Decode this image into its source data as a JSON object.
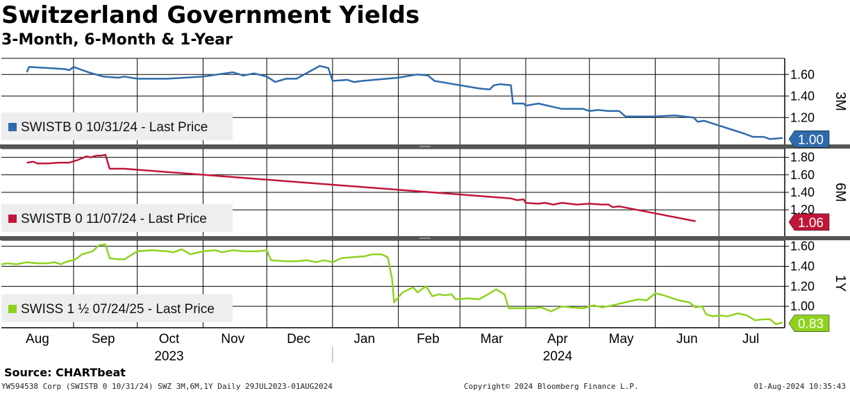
{
  "header": {
    "title": "Switzerland Government Yields",
    "subtitle": "3-Month, 6-Month & 1-Year"
  },
  "source": "Source: CHARTbeat",
  "footer": {
    "left": "YW594538 Corp (SWISTB 0 10/31/24) SWZ 3M,6M,1Y  Daily 29JUL2023-01AUG2024",
    "center": "Copyright© 2024 Bloomberg Finance L.P.",
    "right": "01-Aug-2024 10:35:43"
  },
  "colors": {
    "series_3m": "#2e6bab",
    "series_6m": "#c0163a",
    "series_1y": "#8fd21e",
    "grid": "#000000",
    "legend_bg": "#eeeeee",
    "panel_divider": "#555555"
  },
  "chart_data": {
    "type": "line",
    "x_range": [
      "2023-07-29",
      "2024-08-01"
    ],
    "x_axis": {
      "months": [
        {
          "label": "Aug",
          "date": "2023-08-15"
        },
        {
          "label": "Sep",
          "date": "2023-09-15"
        },
        {
          "label": "Oct",
          "date": "2023-10-16"
        },
        {
          "label": "Nov",
          "date": "2023-11-15"
        },
        {
          "label": "Dec",
          "date": "2023-12-16"
        },
        {
          "label": "Jan",
          "date": "2024-01-16"
        },
        {
          "label": "Feb",
          "date": "2024-02-15"
        },
        {
          "label": "Mar",
          "date": "2024-03-16"
        },
        {
          "label": "Apr",
          "date": "2024-04-16"
        },
        {
          "label": "May",
          "date": "2024-05-16"
        },
        {
          "label": "Jun",
          "date": "2024-06-16"
        },
        {
          "label": "Jul",
          "date": "2024-07-16"
        }
      ],
      "years": [
        {
          "label": "2023",
          "date": "2023-10-16"
        },
        {
          "label": "2024",
          "date": "2024-04-16"
        }
      ],
      "gridlines": [
        "2023-09-01",
        "2023-10-01",
        "2023-11-01",
        "2023-12-01",
        "2024-01-01",
        "2024-02-01",
        "2024-03-01",
        "2024-04-01",
        "2024-05-01",
        "2024-06-01",
        "2024-07-01"
      ]
    },
    "panels": [
      {
        "id": "3M",
        "axis_label": "3M",
        "legend": "SWISTB 0 10/31/24 - Last Price",
        "color": "#2e6bab",
        "ylim": [
          0.95,
          1.75
        ],
        "yticks": [
          "1.60",
          "1.40",
          "1.20"
        ],
        "last_label": "1.00",
        "last_value": 1.0,
        "points": [
          [
            "2023-08-10",
            1.62
          ],
          [
            "2023-08-11",
            1.67
          ],
          [
            "2023-08-20",
            1.66
          ],
          [
            "2023-08-28",
            1.65
          ],
          [
            "2023-08-30",
            1.64
          ],
          [
            "2023-09-01",
            1.67
          ],
          [
            "2023-09-08",
            1.62
          ],
          [
            "2023-09-15",
            1.58
          ],
          [
            "2023-09-22",
            1.57
          ],
          [
            "2023-09-25",
            1.58
          ],
          [
            "2023-10-01",
            1.56
          ],
          [
            "2023-10-15",
            1.56
          ],
          [
            "2023-11-01",
            1.58
          ],
          [
            "2023-11-15",
            1.62
          ],
          [
            "2023-11-20",
            1.59
          ],
          [
            "2023-11-25",
            1.61
          ],
          [
            "2023-12-01",
            1.58
          ],
          [
            "2023-12-05",
            1.53
          ],
          [
            "2023-12-10",
            1.56
          ],
          [
            "2023-12-15",
            1.56
          ],
          [
            "2023-12-26",
            1.68
          ],
          [
            "2023-12-30",
            1.66
          ],
          [
            "2024-01-01",
            1.54
          ],
          [
            "2024-01-08",
            1.55
          ],
          [
            "2024-01-11",
            1.53
          ],
          [
            "2024-01-15",
            1.54
          ],
          [
            "2024-02-01",
            1.57
          ],
          [
            "2024-02-10",
            1.6
          ],
          [
            "2024-02-15",
            1.59
          ],
          [
            "2024-02-18",
            1.54
          ],
          [
            "2024-03-10",
            1.47
          ],
          [
            "2024-03-15",
            1.46
          ],
          [
            "2024-03-17",
            1.5
          ],
          [
            "2024-03-20",
            1.51
          ],
          [
            "2024-03-25",
            1.5
          ],
          [
            "2024-03-26",
            1.33
          ],
          [
            "2024-03-31",
            1.33
          ],
          [
            "2024-04-01",
            1.31
          ],
          [
            "2024-04-07",
            1.33
          ],
          [
            "2024-04-18",
            1.28
          ],
          [
            "2024-04-28",
            1.28
          ],
          [
            "2024-05-01",
            1.26
          ],
          [
            "2024-05-05",
            1.27
          ],
          [
            "2024-05-10",
            1.26
          ],
          [
            "2024-05-15",
            1.26
          ],
          [
            "2024-05-18",
            1.21
          ],
          [
            "2024-06-01",
            1.21
          ],
          [
            "2024-06-10",
            1.22
          ],
          [
            "2024-06-19",
            1.2
          ],
          [
            "2024-06-21",
            1.16
          ],
          [
            "2024-06-24",
            1.17
          ],
          [
            "2024-07-13",
            1.05
          ],
          [
            "2024-07-17",
            1.02
          ],
          [
            "2024-07-22",
            1.02
          ],
          [
            "2024-07-25",
            1.0
          ],
          [
            "2024-07-31",
            1.01
          ]
        ]
      },
      {
        "id": "6M",
        "axis_label": "6M",
        "legend": "SWISTB 0 11/07/24 - Last Price",
        "color": "#c0163a",
        "ylim": [
          0.9,
          1.9
        ],
        "yticks": [
          "1.80",
          "1.60",
          "1.40",
          "1.20"
        ],
        "last_label": "1.06",
        "last_value": 1.06,
        "points": [
          [
            "2023-08-10",
            1.74
          ],
          [
            "2023-08-13",
            1.75
          ],
          [
            "2023-08-15",
            1.73
          ],
          [
            "2023-08-20",
            1.73
          ],
          [
            "2023-08-25",
            1.74
          ],
          [
            "2023-08-30",
            1.74
          ],
          [
            "2023-09-03",
            1.77
          ],
          [
            "2023-09-07",
            1.81
          ],
          [
            "2023-09-09",
            1.8
          ],
          [
            "2023-09-12",
            1.82
          ],
          [
            "2023-09-14",
            1.82
          ],
          [
            "2023-09-16",
            1.83
          ],
          [
            "2023-09-18",
            1.67
          ],
          [
            "2023-09-25",
            1.67
          ],
          [
            "2024-03-25",
            1.33
          ],
          [
            "2024-03-28",
            1.31
          ],
          [
            "2024-03-31",
            1.32
          ],
          [
            "2024-04-01",
            1.28
          ],
          [
            "2024-04-07",
            1.27
          ],
          [
            "2024-04-10",
            1.28
          ],
          [
            "2024-04-14",
            1.26
          ],
          [
            "2024-04-18",
            1.28
          ],
          [
            "2024-04-25",
            1.26
          ],
          [
            "2024-05-01",
            1.27
          ],
          [
            "2024-05-07",
            1.26
          ],
          [
            "2024-05-10",
            1.26
          ],
          [
            "2024-05-12",
            1.23
          ],
          [
            "2024-05-15",
            1.24
          ],
          [
            "2024-06-20",
            1.07
          ]
        ]
      },
      {
        "id": "1Y",
        "axis_label": "1Y",
        "legend": "SWISS 1 ½ 07/24/25 - Last Price",
        "color": "#8fd21e",
        "ylim": [
          0.8,
          1.66
        ],
        "yticks": [
          "1.60",
          "1.40",
          "1.20",
          "1.00"
        ],
        "last_label": "0.83",
        "last_value": 0.83,
        "points": [
          [
            "2023-07-29",
            1.42
          ],
          [
            "2023-08-01",
            1.43
          ],
          [
            "2023-08-05",
            1.42
          ],
          [
            "2023-08-10",
            1.44
          ],
          [
            "2023-08-15",
            1.43
          ],
          [
            "2023-08-20",
            1.43
          ],
          [
            "2023-08-23",
            1.44
          ],
          [
            "2023-08-26",
            1.42
          ],
          [
            "2023-08-28",
            1.44
          ],
          [
            "2023-09-02",
            1.47
          ],
          [
            "2023-09-05",
            1.52
          ],
          [
            "2023-09-10",
            1.55
          ],
          [
            "2023-09-13",
            1.61
          ],
          [
            "2023-09-16",
            1.62
          ],
          [
            "2023-09-18",
            1.48
          ],
          [
            "2023-09-22",
            1.47
          ],
          [
            "2023-09-25",
            1.47
          ],
          [
            "2023-10-01",
            1.55
          ],
          [
            "2023-10-08",
            1.56
          ],
          [
            "2023-10-15",
            1.55
          ],
          [
            "2023-10-18",
            1.54
          ],
          [
            "2023-10-22",
            1.57
          ],
          [
            "2023-10-26",
            1.52
          ],
          [
            "2023-11-01",
            1.55
          ],
          [
            "2023-11-07",
            1.56
          ],
          [
            "2023-11-10",
            1.54
          ],
          [
            "2023-11-15",
            1.56
          ],
          [
            "2023-11-20",
            1.55
          ],
          [
            "2023-11-27",
            1.55
          ],
          [
            "2023-12-01",
            1.56
          ],
          [
            "2023-12-03",
            1.46
          ],
          [
            "2023-12-10",
            1.45
          ],
          [
            "2023-12-15",
            1.45
          ],
          [
            "2023-12-20",
            1.46
          ],
          [
            "2023-12-24",
            1.44
          ],
          [
            "2023-12-28",
            1.46
          ],
          [
            "2024-01-01",
            1.44
          ],
          [
            "2024-01-05",
            1.48
          ],
          [
            "2024-01-10",
            1.49
          ],
          [
            "2024-01-16",
            1.5
          ],
          [
            "2024-01-20",
            1.52
          ],
          [
            "2024-01-24",
            1.52
          ],
          [
            "2024-01-27",
            1.49
          ],
          [
            "2024-01-29",
            1.28
          ],
          [
            "2024-01-30",
            1.04
          ],
          [
            "2024-02-03",
            1.14
          ],
          [
            "2024-02-08",
            1.19
          ],
          [
            "2024-02-10",
            1.14
          ],
          [
            "2024-02-14",
            1.2
          ],
          [
            "2024-02-17",
            1.1
          ],
          [
            "2024-02-20",
            1.12
          ],
          [
            "2024-02-23",
            1.11
          ],
          [
            "2024-02-26",
            1.12
          ],
          [
            "2024-02-28",
            1.07
          ],
          [
            "2024-03-05",
            1.08
          ],
          [
            "2024-03-10",
            1.07
          ],
          [
            "2024-03-15",
            1.13
          ],
          [
            "2024-03-18",
            1.17
          ],
          [
            "2024-03-22",
            1.12
          ],
          [
            "2024-03-24",
            0.98
          ],
          [
            "2024-03-30",
            0.98
          ],
          [
            "2024-04-05",
            0.98
          ],
          [
            "2024-04-08",
            0.99
          ],
          [
            "2024-04-13",
            0.95
          ],
          [
            "2024-04-18",
            1.0
          ],
          [
            "2024-04-22",
            0.99
          ],
          [
            "2024-04-28",
            0.98
          ],
          [
            "2024-05-03",
            1.01
          ],
          [
            "2024-05-07",
            0.99
          ],
          [
            "2024-05-12",
            1.01
          ],
          [
            "2024-05-18",
            1.04
          ],
          [
            "2024-05-24",
            1.07
          ],
          [
            "2024-05-28",
            1.06
          ],
          [
            "2024-06-01",
            1.13
          ],
          [
            "2024-06-05",
            1.11
          ],
          [
            "2024-06-12",
            1.06
          ],
          [
            "2024-06-17",
            1.04
          ],
          [
            "2024-06-20",
            0.99
          ],
          [
            "2024-06-23",
            1.0
          ],
          [
            "2024-06-25",
            0.92
          ],
          [
            "2024-06-28",
            0.9
          ],
          [
            "2024-07-01",
            0.91
          ],
          [
            "2024-07-05",
            0.9
          ],
          [
            "2024-07-10",
            0.93
          ],
          [
            "2024-07-14",
            0.91
          ],
          [
            "2024-07-18",
            0.86
          ],
          [
            "2024-07-22",
            0.87
          ],
          [
            "2024-07-25",
            0.87
          ],
          [
            "2024-07-28",
            0.82
          ],
          [
            "2024-07-31",
            0.84
          ]
        ]
      }
    ]
  }
}
